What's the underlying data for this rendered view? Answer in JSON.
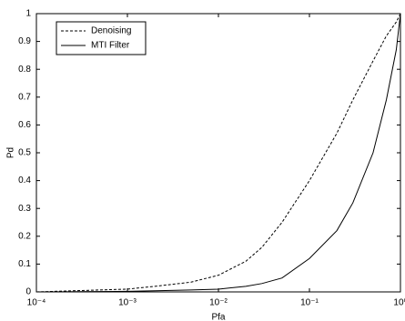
{
  "chart_data": {
    "type": "line",
    "xlabel": "Pfa",
    "ylabel": "Pd",
    "xscale": "log",
    "x": [
      0.0001,
      0.001,
      0.002,
      0.005,
      0.01,
      0.02,
      0.03,
      0.05,
      0.1,
      0.2,
      0.3,
      0.5,
      0.7,
      0.9,
      1
    ],
    "series": [
      {
        "name": "Denoising",
        "color": "#000000",
        "dash": "dashed",
        "values": [
          0,
          0.01,
          0.02,
          0.035,
          0.06,
          0.11,
          0.16,
          0.25,
          0.4,
          0.57,
          0.69,
          0.83,
          0.92,
          0.97,
          1
        ]
      },
      {
        "name": "MTI Filter",
        "color": "#000000",
        "dash": "solid",
        "values": [
          0,
          0.002,
          0.004,
          0.007,
          0.01,
          0.02,
          0.03,
          0.05,
          0.12,
          0.22,
          0.32,
          0.5,
          0.69,
          0.87,
          1
        ]
      }
    ],
    "xlim": [
      0.0001,
      1
    ],
    "xticks": [
      {
        "value": 0.0001,
        "label": "10⁻⁴"
      },
      {
        "value": 0.001,
        "label": "10⁻³"
      },
      {
        "value": 0.01,
        "label": "10⁻²"
      },
      {
        "value": 0.1,
        "label": "10⁻¹"
      },
      {
        "value": 1,
        "label": "10⁰"
      }
    ],
    "ylim": [
      0,
      1
    ],
    "yticks": [
      0,
      0.1,
      0.2,
      0.3,
      0.4,
      0.5,
      0.6,
      0.7,
      0.8,
      0.9,
      1
    ],
    "legend": "upper left",
    "grid": false
  }
}
